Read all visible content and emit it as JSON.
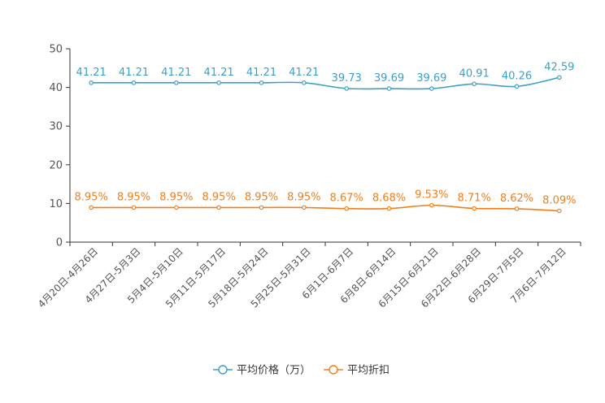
{
  "chart_data": {
    "type": "line",
    "categories": [
      "4月20日-4月26日",
      "4月27日-5月3日",
      "5月4日-5月10日",
      "5月11日-5月17日",
      "5月18日-5月24日",
      "5月25日-5月31日",
      "6月1日-6月7日",
      "6月8日-6月14日",
      "6月15日-6月21日",
      "6月22日-6月28日",
      "6月29日-7月5日",
      "7月6日-7月12日"
    ],
    "ylim": [
      0,
      50
    ],
    "yticks": [
      0,
      10,
      20,
      30,
      40,
      50
    ],
    "series": [
      {
        "name": "平均价格（万）",
        "color": "#3d9fc9",
        "values": [
          41.21,
          41.21,
          41.21,
          41.21,
          41.21,
          41.21,
          39.73,
          39.69,
          39.69,
          40.91,
          40.26,
          42.59
        ],
        "labels": [
          "41.21",
          "41.21",
          "41.21",
          "41.21",
          "41.21",
          "41.21",
          "39.73",
          "39.69",
          "39.69",
          "40.91",
          "40.26",
          "42.59"
        ]
      },
      {
        "name": "平均折扣",
        "color": "#f07f1b",
        "values": [
          8.95,
          8.95,
          8.95,
          8.95,
          8.95,
          8.95,
          8.67,
          8.68,
          9.53,
          8.71,
          8.62,
          8.09
        ],
        "labels": [
          "8.95%",
          "8.95%",
          "8.95%",
          "8.95%",
          "8.95%",
          "8.95%",
          "8.67%",
          "8.68%",
          "9.53%",
          "8.71%",
          "8.62%",
          "8.09%"
        ]
      }
    ],
    "legend_position": "bottom-center",
    "grid": false
  }
}
